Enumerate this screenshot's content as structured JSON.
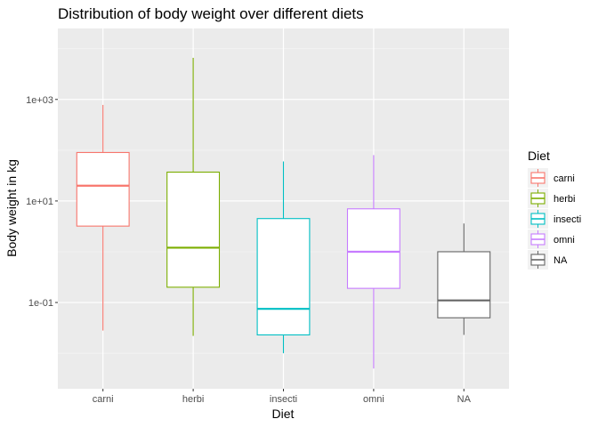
{
  "chart_data": {
    "type": "boxplot",
    "title": "Distribution of body weight over different diets",
    "xlabel": "Diet",
    "ylabel": "Body weight in kg",
    "y_scale": "log10",
    "ylim": [
      0.002,
      25000
    ],
    "y_ticks": [
      {
        "value": 0.1,
        "label": "1e-01"
      },
      {
        "value": 10,
        "label": "1e+01"
      },
      {
        "value": 1000,
        "label": "1e+03"
      }
    ],
    "grid": true,
    "legend": {
      "title": "Diet",
      "position": "right"
    },
    "categories": [
      "carni",
      "herbi",
      "insecti",
      "omni",
      "NA"
    ],
    "series": [
      {
        "name": "carni",
        "color": "#F8766D",
        "min": 0.028,
        "q1": 3.2,
        "median": 20,
        "q3": 90,
        "max": 780
      },
      {
        "name": "herbi",
        "color": "#7CAE00",
        "min": 0.022,
        "q1": 0.2,
        "median": 1.2,
        "q3": 37,
        "max": 6600
      },
      {
        "name": "insecti",
        "color": "#00BFC4",
        "min": 0.01,
        "q1": 0.023,
        "median": 0.075,
        "q3": 4.5,
        "max": 60
      },
      {
        "name": "omni",
        "color": "#C77CFF",
        "min": 0.005,
        "q1": 0.19,
        "median": 1.0,
        "q3": 7.0,
        "max": 80
      },
      {
        "name": "NA",
        "color": "#666666",
        "min": 0.023,
        "q1": 0.05,
        "median": 0.11,
        "q3": 1.0,
        "max": 3.6
      }
    ]
  }
}
